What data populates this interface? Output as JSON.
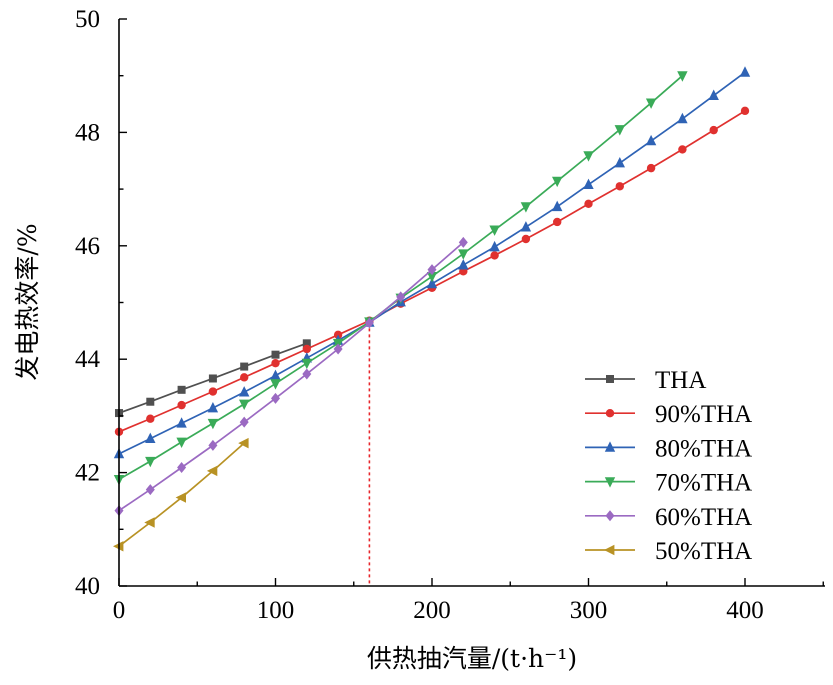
{
  "chart_data": {
    "type": "line",
    "xlabel": "供热抽汽量/(t·h⁻¹)",
    "ylabel": "发电热效率/%",
    "xlim": [
      0,
      450
    ],
    "ylim": [
      40,
      50
    ],
    "xticks": [
      0,
      100,
      200,
      300,
      400
    ],
    "yticks": [
      40,
      42,
      44,
      46,
      48,
      50
    ],
    "legend_position": "bottom-right",
    "grid": false,
    "reference_line": {
      "x": 160,
      "y": 44.65,
      "color": "#e8262b",
      "style": "dotted"
    },
    "series": [
      {
        "name": "THA",
        "color": "#505050",
        "marker": "square",
        "x": [
          0,
          20,
          40,
          60,
          80,
          100,
          120
        ],
        "y": [
          43.05,
          43.25,
          43.46,
          43.66,
          43.87,
          44.08,
          44.28
        ]
      },
      {
        "name": "90%THA",
        "color": "#e0312f",
        "marker": "circle",
        "x": [
          0,
          20,
          40,
          60,
          80,
          100,
          120,
          140,
          160,
          180,
          200,
          220,
          240,
          260,
          280,
          300,
          320,
          340,
          360,
          380,
          400
        ],
        "y": [
          42.72,
          42.95,
          43.19,
          43.43,
          43.68,
          43.93,
          44.18,
          44.43,
          44.68,
          44.98,
          45.26,
          45.55,
          45.83,
          46.12,
          46.42,
          46.74,
          47.05,
          47.37,
          47.7,
          48.04,
          48.38
        ]
      },
      {
        "name": "80%THA",
        "color": "#2f63b5",
        "marker": "triangle-up",
        "x": [
          0,
          20,
          40,
          60,
          80,
          100,
          120,
          140,
          160,
          180,
          200,
          220,
          240,
          260,
          280,
          300,
          320,
          340,
          360,
          380,
          400
        ],
        "y": [
          42.33,
          42.6,
          42.87,
          43.14,
          43.42,
          43.71,
          44.02,
          44.33,
          44.65,
          45.01,
          45.33,
          45.66,
          45.98,
          46.33,
          46.69,
          47.08,
          47.46,
          47.85,
          48.24,
          48.65,
          49.06
        ]
      },
      {
        "name": "70%THA",
        "color": "#3aab58",
        "marker": "triangle-down",
        "x": [
          0,
          20,
          40,
          60,
          80,
          100,
          120,
          140,
          160,
          180,
          200,
          220,
          240,
          260,
          280,
          300,
          320,
          340,
          360
        ],
        "y": [
          41.88,
          42.2,
          42.54,
          42.87,
          43.21,
          43.57,
          43.93,
          44.28,
          44.66,
          45.08,
          45.46,
          45.86,
          46.28,
          46.69,
          47.14,
          47.59,
          48.05,
          48.52,
          49.0
        ]
      },
      {
        "name": "60%THA",
        "color": "#9b6ac2",
        "marker": "diamond",
        "x": [
          0,
          20,
          40,
          60,
          80,
          100,
          120,
          140,
          160,
          180,
          200,
          220
        ],
        "y": [
          41.33,
          41.7,
          42.09,
          42.48,
          42.89,
          43.31,
          43.74,
          44.18,
          44.64,
          45.1,
          45.58,
          46.06
        ]
      },
      {
        "name": "50%THA",
        "color": "#b89224",
        "marker": "triangle-left",
        "x": [
          0,
          20,
          40,
          60,
          80
        ],
        "y": [
          40.7,
          41.12,
          41.56,
          42.03,
          42.52
        ]
      }
    ]
  }
}
